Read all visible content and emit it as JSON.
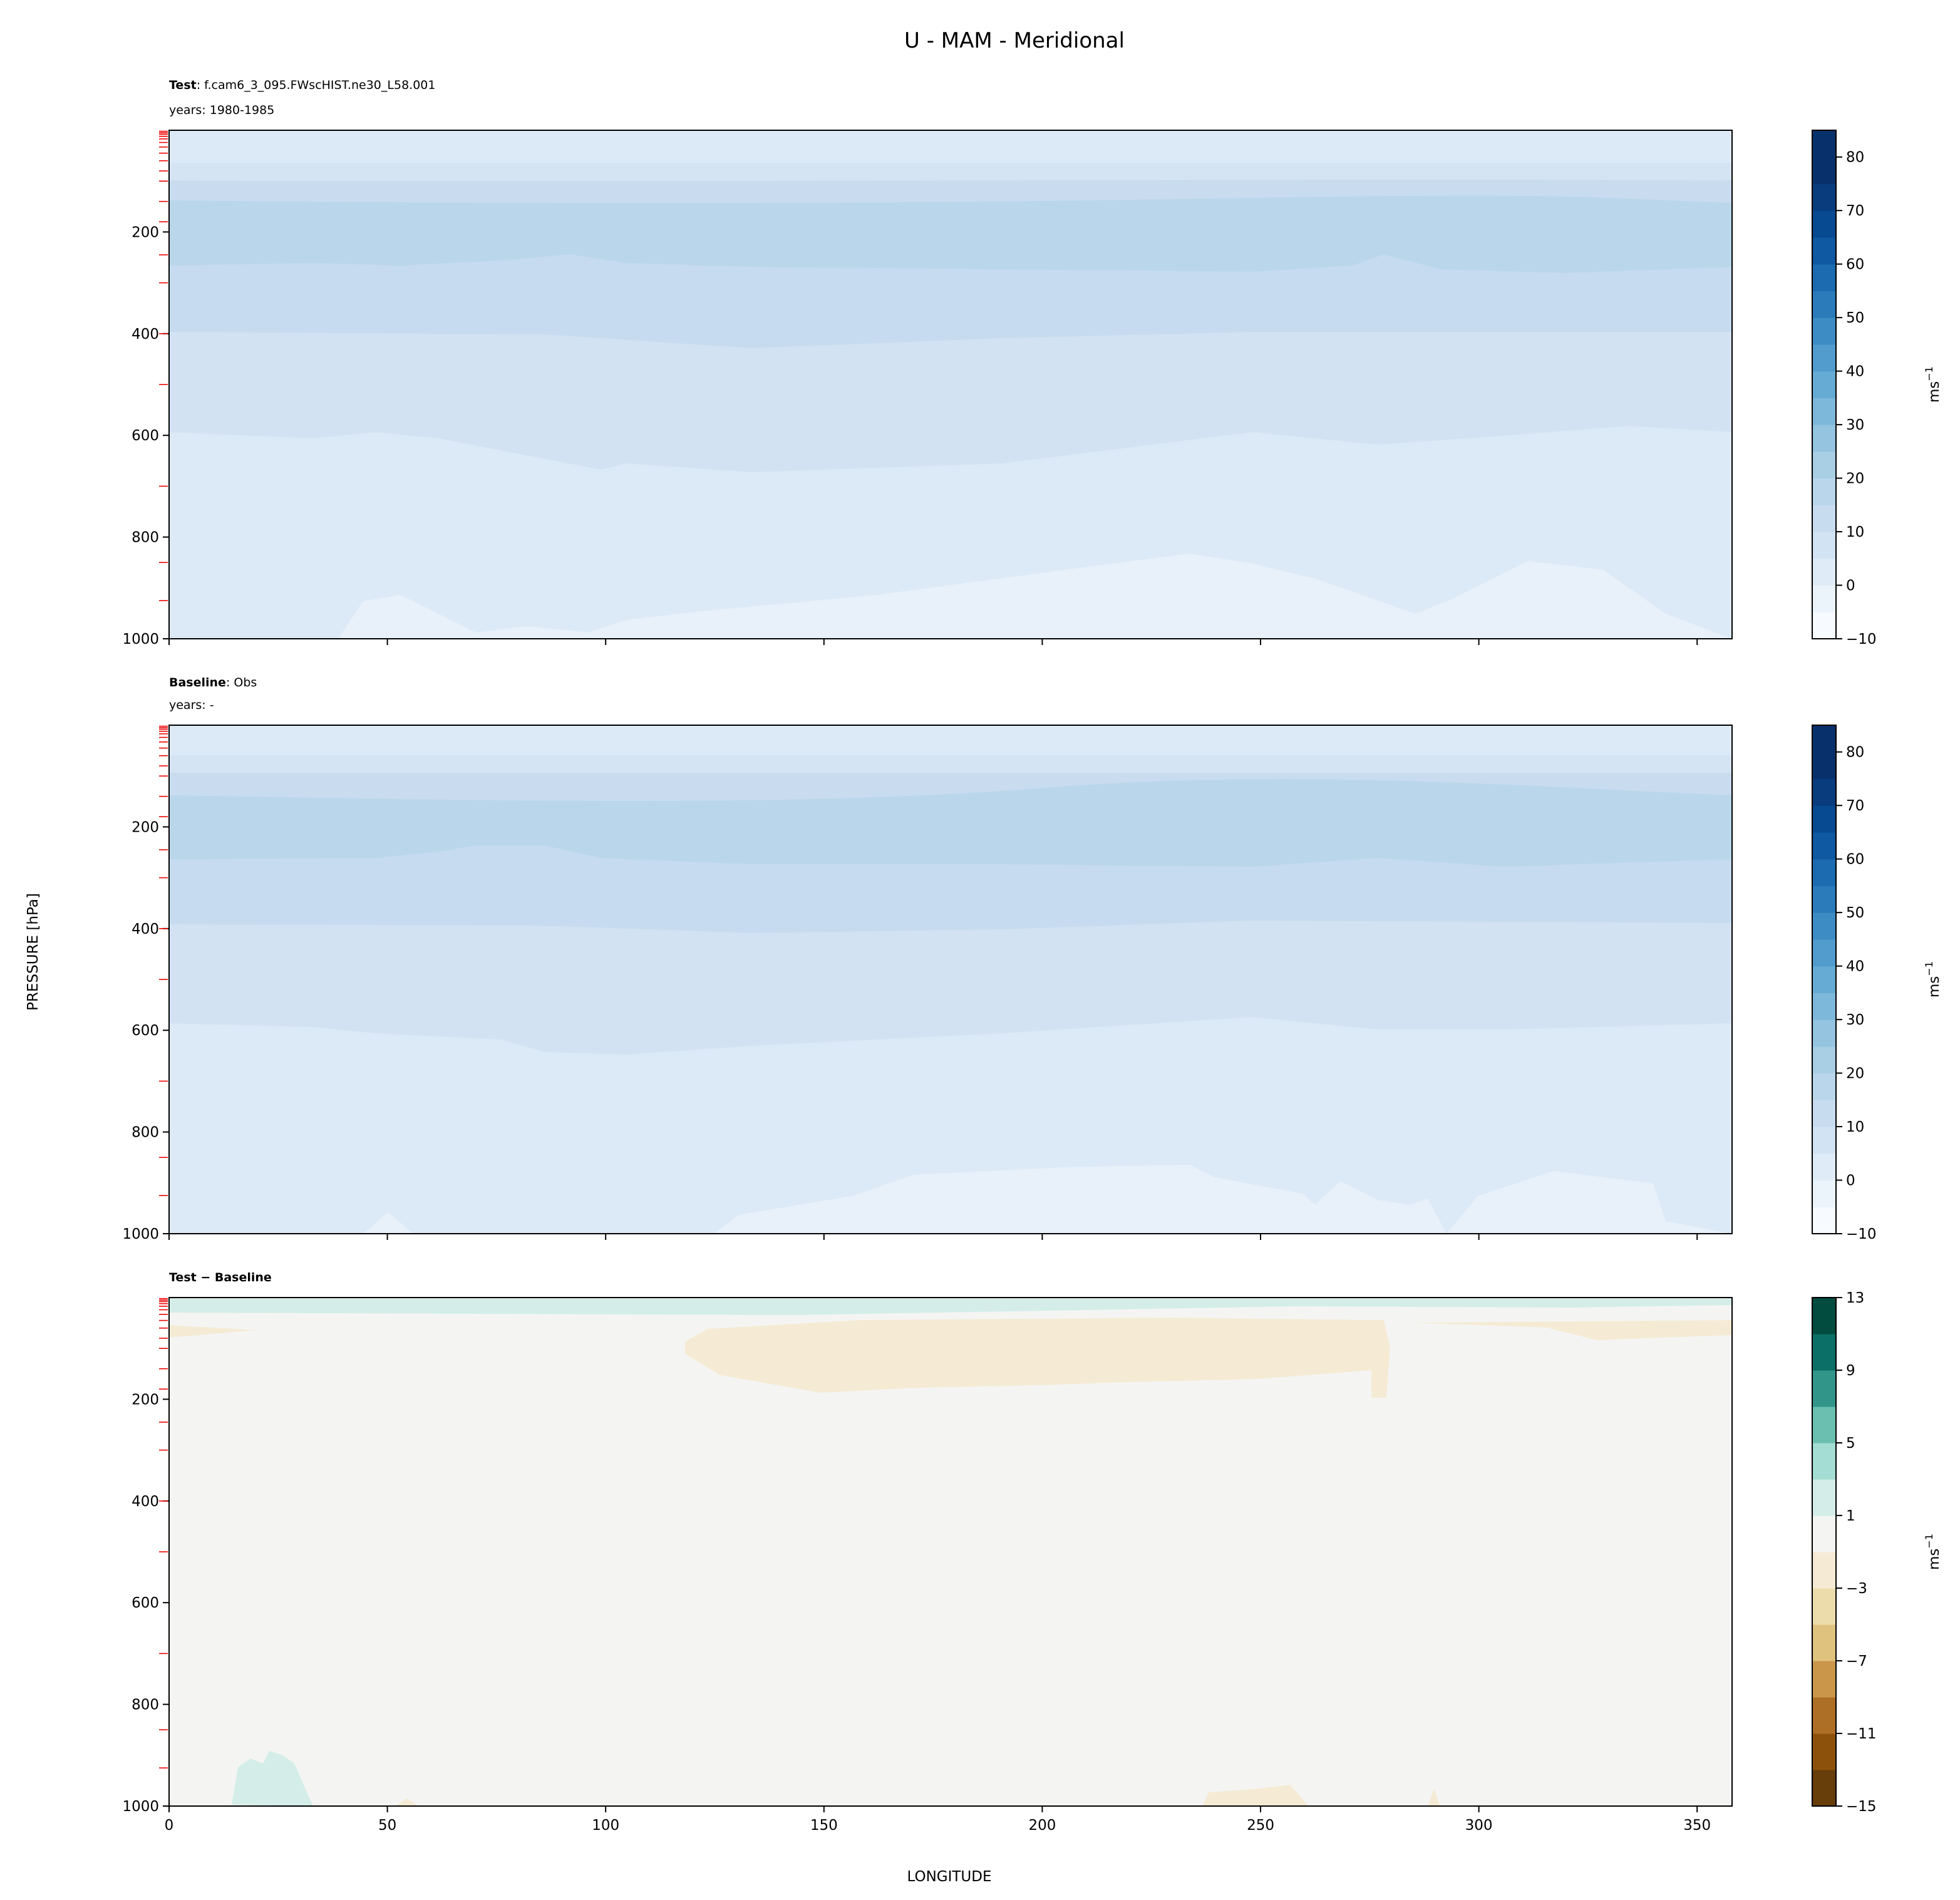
{
  "chart_data": {
    "type": "heatmap",
    "title": "U - MAM - Meridional",
    "xlabel": "LONGITUDE",
    "ylabel": "PRESSURE [hPa]",
    "xlim": [
      0,
      358
    ],
    "ylim": [
      1000,
      0
    ],
    "xticks": [
      "0",
      "50",
      "100",
      "150",
      "200",
      "250",
      "300",
      "350"
    ],
    "yticks": [
      "200",
      "400",
      "600",
      "800",
      "1000"
    ],
    "panels": [
      {
        "name": "test",
        "label_bold": "Test",
        "label": ": f.cam6_3_095.FWscHIST.ne30_L58.001",
        "years": "years: 1980-1985",
        "colorbar": {
          "levels_min": -10,
          "levels_max": 85,
          "step": 5,
          "ticks": [
            "−10",
            "0",
            "10",
            "20",
            "30",
            "40",
            "50",
            "60",
            "70",
            "80"
          ],
          "units": "ms",
          "units_exp": "−1",
          "cmap": "Blues"
        }
      },
      {
        "name": "baseline",
        "label_bold": "Baseline",
        "label": ": Obs",
        "years": "years: -",
        "colorbar": {
          "levels_min": -10,
          "levels_max": 85,
          "step": 5,
          "ticks": [
            "−10",
            "0",
            "10",
            "20",
            "30",
            "40",
            "50",
            "60",
            "70",
            "80"
          ],
          "units": "ms",
          "units_exp": "−1",
          "cmap": "Blues"
        }
      },
      {
        "name": "difference",
        "label_bold": "Test − Baseline",
        "label": "",
        "years": "",
        "colorbar": {
          "levels_min": -15,
          "levels_max": 13,
          "step": 2,
          "ticks": [
            "−15",
            "−11",
            "−7",
            "−3",
            "1",
            "5",
            "9",
            "13"
          ],
          "units": "ms",
          "units_exp": "−1",
          "cmap": "BrBG",
          "colors": [
            "#673d09",
            "#8c520c",
            "#ad6e25",
            "#c9964a",
            "#dfc27e",
            "#eddcab",
            "#f5ebd5",
            "#f4f5f3",
            "#d4ede8",
            "#a4ddd3",
            "#6bbfb1",
            "#32958a",
            "#0c6f67",
            "#024b3f"
          ]
        }
      }
    ]
  },
  "blues": [
    "#f7fbff",
    "#ebf3fb",
    "#dfecf7",
    "#d2e3f3",
    "#c8dcf0",
    "#bad6eb",
    "#a9cfe5",
    "#94c4df",
    "#7db8da",
    "#66abd4",
    "#519ccc",
    "#3d8dc4",
    "#2b7bba",
    "#1c6ab0",
    "#0e59a2",
    "#084a91",
    "#083c7d",
    "#08306b",
    "#08306b"
  ]
}
